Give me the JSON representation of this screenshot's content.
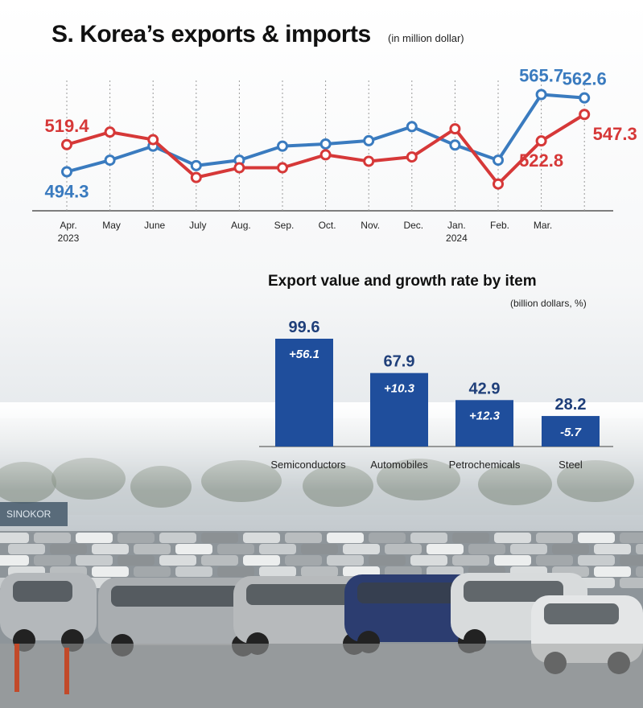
{
  "header": {
    "title": "S. Korea’s exports & imports",
    "unit": "(in million dollar)"
  },
  "photo": {
    "sign_text": "SINOKOR"
  },
  "chart_data": [
    {
      "type": "line",
      "title": "S. Korea’s exports & imports",
      "subtitle": "(in million dollar)",
      "categories": [
        {
          "label": "Apr.",
          "year": "2023"
        },
        {
          "label": "May",
          "year": ""
        },
        {
          "label": "June",
          "year": ""
        },
        {
          "label": "July",
          "year": ""
        },
        {
          "label": "Aug.",
          "year": ""
        },
        {
          "label": "Sep.",
          "year": ""
        },
        {
          "label": "Oct.",
          "year": ""
        },
        {
          "label": "Nov.",
          "year": ""
        },
        {
          "label": "Dec.",
          "year": ""
        },
        {
          "label": "Jan.",
          "year": "2024"
        },
        {
          "label": "Feb.",
          "year": ""
        },
        {
          "label": "Mar.",
          "year": ""
        },
        {
          "label": "",
          "year": ""
        }
      ],
      "ylim": [
        485,
        575
      ],
      "grid": "vertical dotted",
      "series": [
        {
          "name": "",
          "color": "#3a7bbf",
          "values": [
            494.3,
            505,
            518,
            500,
            505,
            518,
            520,
            523,
            536,
            519,
            505,
            565.7,
            562.6
          ],
          "labels": [
            {
              "index": 0,
              "text": "494.3",
              "pos": "below"
            },
            {
              "index": 11,
              "text": "565.7",
              "pos": "above"
            },
            {
              "index": 12,
              "text": "562.6",
              "pos": "above"
            }
          ]
        },
        {
          "name": "",
          "color": "#d63838",
          "values": [
            519.4,
            531,
            524,
            489,
            498,
            498,
            510,
            504,
            508,
            534,
            483,
            522.8,
            547.3
          ],
          "labels": [
            {
              "index": 0,
              "text": "519.4",
              "pos": "above"
            },
            {
              "index": 11,
              "text": "522.8",
              "pos": "below"
            },
            {
              "index": 12,
              "text": "547.3",
              "pos": "right"
            }
          ]
        }
      ]
    },
    {
      "type": "bar",
      "title": "Export value and growth rate by item",
      "subtitle": "(billion dollars, %)",
      "categories": [
        "Semiconductors",
        "Automobiles",
        "Petrochemicals",
        "Steel"
      ],
      "values": [
        99.6,
        67.9,
        42.9,
        28.2
      ],
      "value_labels": [
        "99.6",
        "67.9",
        "42.9",
        "28.2"
      ],
      "growth_rates": [
        "+56.1",
        "+10.3",
        "+12.3",
        "-5.7"
      ],
      "bar_color": "#1f4e9c",
      "ylim": [
        0,
        99.6
      ]
    }
  ]
}
